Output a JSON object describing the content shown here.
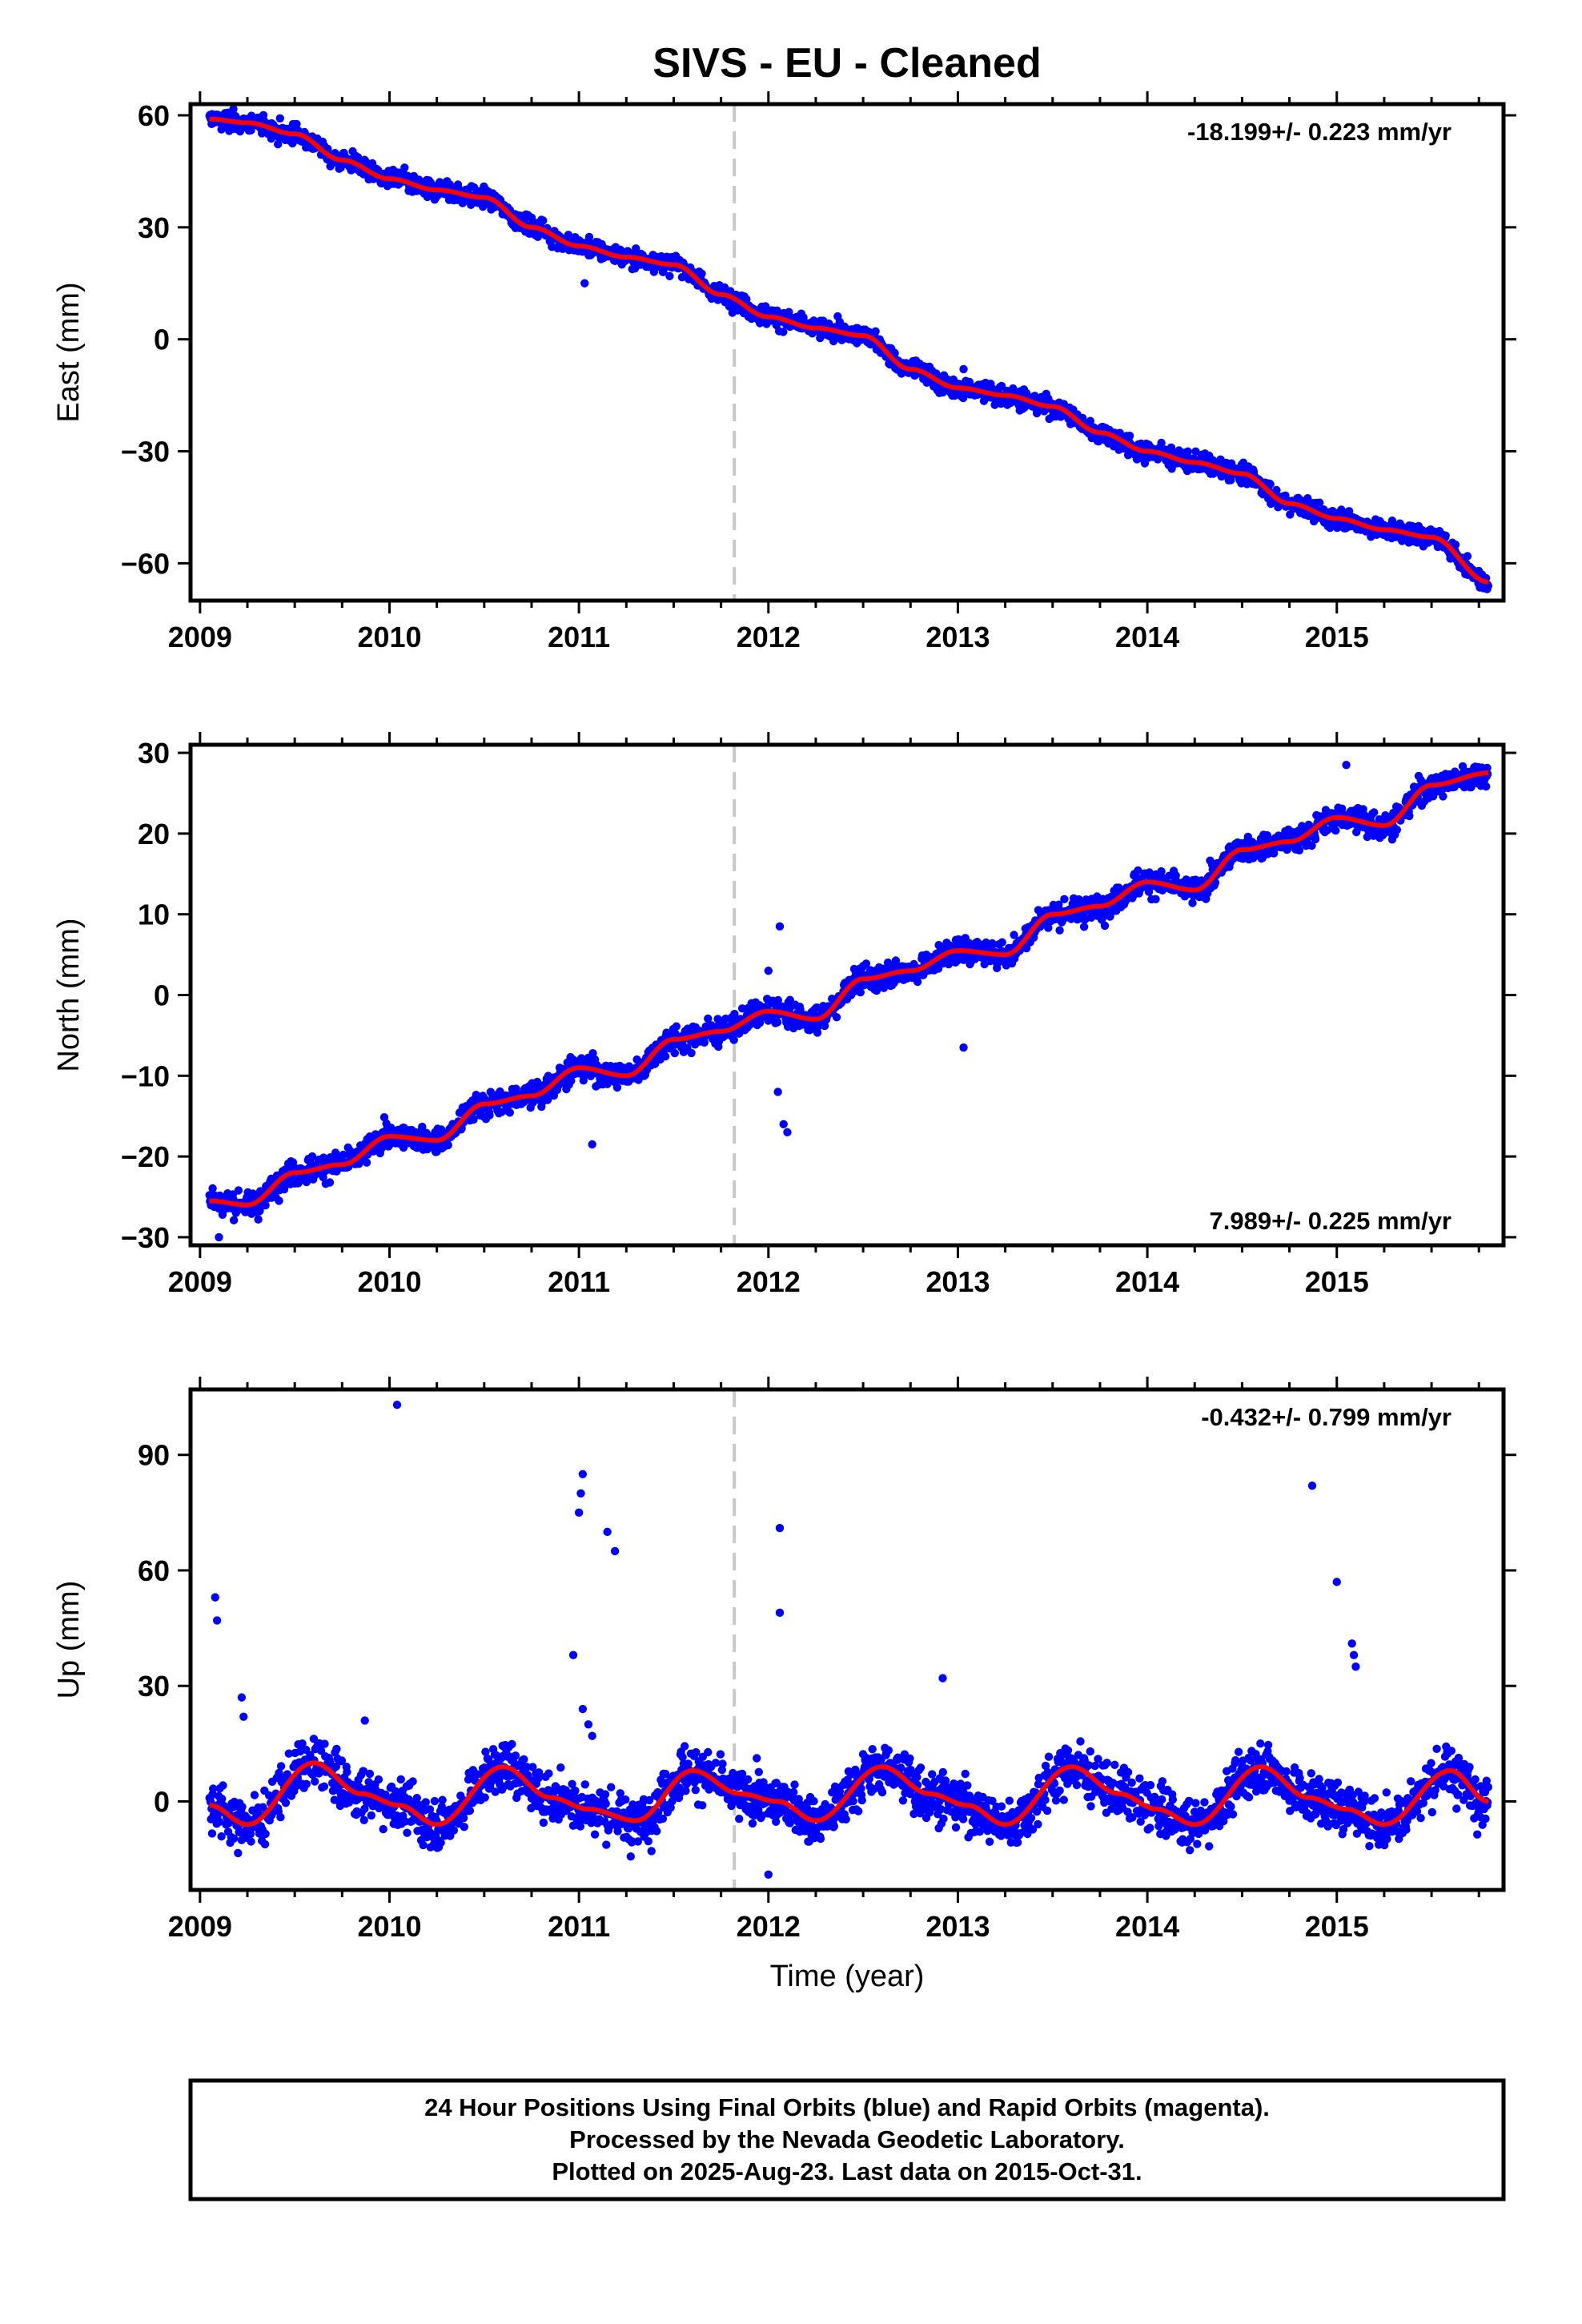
{
  "title": "SIVS  - EU - Cleaned",
  "colors": {
    "final_orbits": "#0000ff",
    "rapid_orbits": "#ff00ff",
    "model_fit": "#ff0000",
    "event_line": "#c8c8c8"
  },
  "footer": {
    "line1": "24 Hour Positions Using Final Orbits (blue) and Rapid Orbits (magenta).",
    "line2": "Processed by the Nevada Geodetic Laboratory.",
    "line3": "Plotted on 2025-Aug-23. Last data on 2015-Oct-31."
  },
  "chart_data": [
    {
      "type": "scatter",
      "ylabel": "East (mm)",
      "xlabel": "",
      "xlim": [
        2008.95,
        2015.88
      ],
      "ylim": [
        -70,
        63
      ],
      "xticks": [
        2009,
        2010,
        2011,
        2012,
        2013,
        2014,
        2015
      ],
      "yticks": [
        -60,
        -30,
        0,
        30,
        60
      ],
      "ytick_labels": [
        "−60",
        "−30",
        "0",
        "30",
        "60"
      ],
      "rate": "-18.199+/- 0.223 mm/yr",
      "rate_position": "top-right",
      "event_line_x": 2011.82,
      "series": [
        {
          "kind": "daily-positions",
          "x": [
            2009.05,
            2009.25,
            2009.5,
            2009.75,
            2010.0,
            2010.25,
            2010.5,
            2010.75,
            2011.0,
            2011.25,
            2011.5,
            2011.75,
            2012.0,
            2012.25,
            2012.5,
            2012.75,
            2013.0,
            2013.25,
            2013.5,
            2013.75,
            2014.0,
            2014.25,
            2014.5,
            2014.75,
            2015.0,
            2015.25,
            2015.5,
            2015.8
          ],
          "y": [
            59,
            58,
            55,
            48,
            43,
            40,
            38,
            30,
            25,
            22,
            20,
            12,
            6,
            3,
            1,
            -8,
            -13,
            -15,
            -18,
            -25,
            -30,
            -33,
            -36,
            -44,
            -48,
            -51,
            -53,
            -65
          ],
          "scatter": 1.8,
          "outliers": [
            [
              2011.03,
              15
            ],
            [
              2013.03,
              -8
            ]
          ]
        },
        {
          "kind": "model-fit",
          "x": [
            2009.05,
            2009.25,
            2009.5,
            2009.75,
            2010.0,
            2010.25,
            2010.5,
            2010.75,
            2011.0,
            2011.25,
            2011.5,
            2011.75,
            2012.0,
            2012.25,
            2012.5,
            2012.75,
            2013.0,
            2013.25,
            2013.5,
            2013.75,
            2014.0,
            2014.25,
            2014.5,
            2014.75,
            2015.0,
            2015.25,
            2015.5,
            2015.8
          ],
          "y": [
            59,
            58,
            55,
            48,
            43,
            40,
            38,
            30,
            25,
            22,
            20,
            12,
            6,
            3,
            1,
            -8,
            -13,
            -15,
            -18,
            -25,
            -30,
            -33,
            -36,
            -44,
            -48,
            -51,
            -53,
            -65
          ]
        }
      ]
    },
    {
      "type": "scatter",
      "ylabel": "North (mm)",
      "xlabel": "",
      "xlim": [
        2008.95,
        2015.88
      ],
      "ylim": [
        -31,
        31
      ],
      "xticks": [
        2009,
        2010,
        2011,
        2012,
        2013,
        2014,
        2015
      ],
      "yticks": [
        -30,
        -20,
        -10,
        0,
        10,
        20,
        30
      ],
      "ytick_labels": [
        "−30",
        "−20",
        "−10",
        "0",
        "10",
        "20",
        "30"
      ],
      "rate": "7.989+/- 0.225 mm/yr",
      "rate_position": "bottom-right",
      "event_line_x": 2011.82,
      "series": [
        {
          "kind": "daily-positions",
          "x": [
            2009.05,
            2009.25,
            2009.5,
            2009.75,
            2010.0,
            2010.25,
            2010.5,
            2010.75,
            2011.0,
            2011.25,
            2011.5,
            2011.75,
            2012.0,
            2012.25,
            2012.5,
            2012.75,
            2013.0,
            2013.25,
            2013.5,
            2013.75,
            2014.0,
            2014.25,
            2014.5,
            2014.75,
            2015.0,
            2015.25,
            2015.5,
            2015.8
          ],
          "y": [
            -25.5,
            -26,
            -22,
            -21,
            -17.5,
            -18,
            -13.5,
            -12.5,
            -9,
            -10,
            -5.5,
            -4.5,
            -2,
            -3,
            2,
            3,
            5.5,
            5,
            10,
            11,
            14,
            13,
            18,
            19,
            22,
            21,
            26,
            27.5
          ],
          "scatter": 1.1,
          "outliers": [
            [
              2009.1,
              -30
            ],
            [
              2011.07,
              -18.5
            ],
            [
              2012.0,
              3
            ],
            [
              2012.05,
              -12
            ],
            [
              2012.08,
              -16
            ],
            [
              2012.1,
              -17
            ],
            [
              2012.06,
              8.5
            ],
            [
              2013.03,
              -6.5
            ],
            [
              2015.05,
              28.5
            ]
          ]
        },
        {
          "kind": "model-fit",
          "x": [
            2009.05,
            2009.25,
            2009.5,
            2009.75,
            2010.0,
            2010.25,
            2010.5,
            2010.75,
            2011.0,
            2011.25,
            2011.5,
            2011.75,
            2012.0,
            2012.25,
            2012.5,
            2012.75,
            2013.0,
            2013.25,
            2013.5,
            2013.75,
            2014.0,
            2014.25,
            2014.5,
            2014.75,
            2015.0,
            2015.25,
            2015.5,
            2015.8
          ],
          "y": [
            -25.5,
            -26,
            -22,
            -21,
            -17.5,
            -18,
            -13.5,
            -12.5,
            -9,
            -10,
            -5.5,
            -4.5,
            -2,
            -3,
            2,
            3,
            5.5,
            5,
            10,
            11,
            14,
            13,
            18,
            19,
            22,
            21,
            26,
            27.5
          ]
        }
      ]
    },
    {
      "type": "scatter",
      "ylabel": "Up (mm)",
      "xlabel": "Time (year)",
      "xlim": [
        2008.95,
        2015.88
      ],
      "ylim": [
        -23,
        107
      ],
      "xticks": [
        2009,
        2010,
        2011,
        2012,
        2013,
        2014,
        2015
      ],
      "yticks": [
        0,
        30,
        60,
        90
      ],
      "ytick_labels": [
        "0",
        "30",
        "60",
        "90"
      ],
      "rate": "-0.432+/- 0.799 mm/yr",
      "rate_position": "top-right",
      "event_line_x": 2011.82,
      "series": [
        {
          "kind": "daily-positions",
          "x": [
            2009.05,
            2009.25,
            2009.6,
            2009.85,
            2010.05,
            2010.25,
            2010.6,
            2010.85,
            2011.05,
            2011.3,
            2011.6,
            2011.85,
            2012.05,
            2012.25,
            2012.6,
            2012.85,
            2013.05,
            2013.25,
            2013.6,
            2013.85,
            2014.05,
            2014.25,
            2014.6,
            2014.85,
            2015.05,
            2015.25,
            2015.6,
            2015.8
          ],
          "y": [
            -1,
            -6,
            10,
            2,
            -1,
            -6,
            9,
            1,
            -2,
            -5,
            8,
            2,
            0,
            -5,
            9,
            2,
            -1,
            -6,
            9,
            2,
            -2,
            -6,
            9,
            1,
            -2,
            -6,
            8,
            0
          ],
          "scatter": 4.5,
          "outliers": [
            [
              2009.08,
              53
            ],
            [
              2009.09,
              47
            ],
            [
              2009.22,
              27
            ],
            [
              2009.23,
              22
            ],
            [
              2009.87,
              21
            ],
            [
              2010.04,
              103
            ],
            [
              2010.97,
              38
            ],
            [
              2011.02,
              85
            ],
            [
              2011.01,
              80
            ],
            [
              2011.0,
              75
            ],
            [
              2011.15,
              70
            ],
            [
              2011.19,
              65
            ],
            [
              2011.02,
              24
            ],
            [
              2011.05,
              20
            ],
            [
              2011.07,
              17
            ],
            [
              2012.06,
              71
            ],
            [
              2012.06,
              49
            ],
            [
              2012.0,
              -19
            ],
            [
              2012.92,
              32
            ],
            [
              2014.87,
              82
            ],
            [
              2015.0,
              57
            ],
            [
              2015.08,
              41
            ],
            [
              2015.09,
              38
            ],
            [
              2015.1,
              35
            ]
          ]
        },
        {
          "kind": "model-fit",
          "x": [
            2009.05,
            2009.25,
            2009.6,
            2009.85,
            2010.05,
            2010.25,
            2010.6,
            2010.85,
            2011.05,
            2011.3,
            2011.6,
            2011.85,
            2012.05,
            2012.25,
            2012.6,
            2012.85,
            2013.05,
            2013.25,
            2013.6,
            2013.85,
            2014.05,
            2014.25,
            2014.6,
            2014.85,
            2015.05,
            2015.25,
            2015.6,
            2015.8
          ],
          "y": [
            -1,
            -6,
            10,
            2,
            -1,
            -6,
            9,
            1,
            -2,
            -5,
            8,
            2,
            0,
            -5,
            9,
            2,
            -1,
            -6,
            9,
            2,
            -2,
            -6,
            9,
            1,
            -2,
            -6,
            8,
            0
          ]
        }
      ]
    }
  ]
}
